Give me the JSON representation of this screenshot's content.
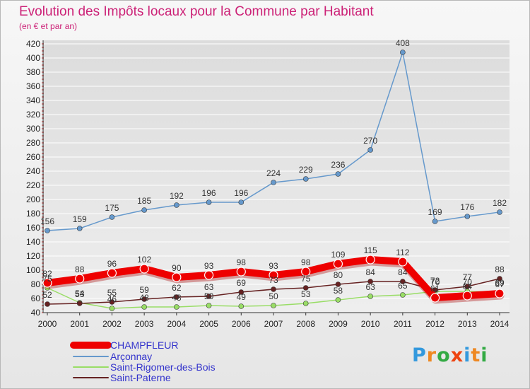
{
  "title": "Evolution des Impôts locaux pour la Commune par Habitant",
  "subtitle": "(en € et par an)",
  "logo": {
    "text": "Proxiti",
    "colors": [
      "#3399dd",
      "#ee8822",
      "#33aa44",
      "#ee4411",
      "#3399dd",
      "#ee8822",
      "#33aa44"
    ]
  },
  "colors": {
    "axis": "#333333",
    "grid": "#ffffff",
    "label": "#222222"
  },
  "chart_data": {
    "type": "line",
    "title": "Evolution des Impôts locaux pour la Commune par Habitant",
    "ylabel": "(en € et par an)",
    "xlabel": "",
    "x": [
      "2000",
      "2001",
      "2002",
      "2003",
      "2004",
      "2005",
      "2006",
      "2007",
      "2008",
      "2009",
      "2010",
      "2011",
      "2012",
      "2013",
      "2014"
    ],
    "ylim": [
      40,
      420
    ],
    "yticks": [
      40,
      60,
      80,
      100,
      120,
      140,
      160,
      180,
      200,
      220,
      240,
      260,
      280,
      300,
      320,
      340,
      360,
      380,
      400,
      420
    ],
    "legend_position": "bottom-left",
    "series": [
      {
        "name": "CHAMPFLEUR",
        "color": "#ee0000",
        "values": [
          82,
          88,
          96,
          102,
          90,
          93,
          98,
          93,
          98,
          109,
          115,
          112,
          61,
          64,
          67
        ],
        "labels": [
          "82",
          "88",
          "96",
          "102",
          "90",
          "93",
          "98",
          "93",
          "98",
          "109",
          "115",
          "112",
          "61",
          "64",
          "67"
        ]
      },
      {
        "name": "Arçonnay",
        "color": "#6699cc",
        "values": [
          156,
          159,
          175,
          185,
          192,
          196,
          196,
          224,
          229,
          236,
          270,
          408,
          169,
          176,
          182
        ],
        "labels": [
          "156",
          "159",
          "175",
          "185",
          "192",
          "196",
          "196",
          "224",
          "229",
          "236",
          "270",
          "408",
          "169",
          "176",
          "182"
        ]
      },
      {
        "name": "Saint-Rigomer-des-Bois",
        "color": "#99dd66",
        "values": [
          75,
          54,
          46,
          48,
          48,
          50,
          49,
          50,
          53,
          58,
          63,
          65,
          70,
          70,
          69
        ],
        "labels": [
          "75",
          "54",
          "46",
          "48",
          "48",
          "50",
          "49",
          "50",
          "53",
          "58",
          "63",
          "65",
          "70",
          "70",
          "69"
        ]
      },
      {
        "name": "Saint-Paterne",
        "color": "#662222",
        "values": [
          52,
          53,
          55,
          59,
          62,
          63,
          69,
          73,
          75,
          80,
          84,
          84,
          72,
          77,
          88
        ],
        "labels": [
          "52",
          "53",
          "55",
          "59",
          "62",
          "63",
          "69",
          "73",
          "75",
          "80",
          "84",
          "84",
          "72",
          "77",
          "88"
        ]
      }
    ]
  }
}
